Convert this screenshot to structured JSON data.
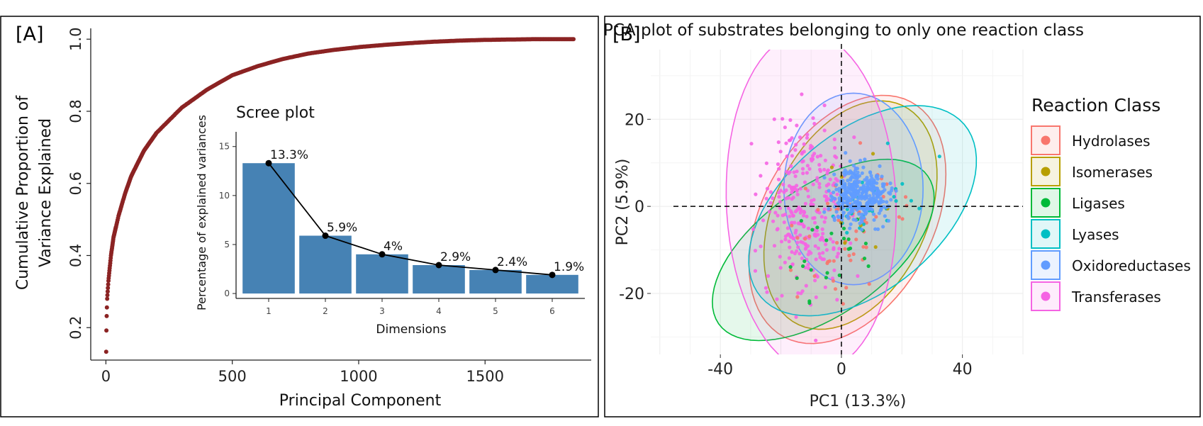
{
  "panel_a": {
    "tag": "[A]",
    "chart_data": {
      "type": "scatter",
      "xlabel": "Principal Component",
      "ylabel_lines": [
        "Cumulative Proportion of",
        "Variance Explained"
      ],
      "xlim": [
        -60,
        1920
      ],
      "ylim": [
        0.11,
        1.03
      ],
      "xticks": [
        0,
        500,
        1000,
        1500
      ],
      "yticks": [
        0.2,
        0.4,
        0.6,
        0.8,
        1.0
      ],
      "ytick_labels": [
        "0.2",
        "0.4",
        "0.6",
        "0.8",
        "1.0"
      ],
      "n_components": 1850,
      "curve_points": [
        [
          1,
          0.133
        ],
        [
          2,
          0.192
        ],
        [
          3,
          0.232
        ],
        [
          5,
          0.28
        ],
        [
          10,
          0.33
        ],
        [
          20,
          0.4
        ],
        [
          30,
          0.45
        ],
        [
          50,
          0.51
        ],
        [
          75,
          0.57
        ],
        [
          100,
          0.62
        ],
        [
          150,
          0.69
        ],
        [
          200,
          0.74
        ],
        [
          300,
          0.81
        ],
        [
          400,
          0.86
        ],
        [
          500,
          0.9
        ],
        [
          600,
          0.925
        ],
        [
          700,
          0.945
        ],
        [
          800,
          0.96
        ],
        [
          900,
          0.97
        ],
        [
          1000,
          0.978
        ],
        [
          1100,
          0.984
        ],
        [
          1200,
          0.989
        ],
        [
          1300,
          0.993
        ],
        [
          1400,
          0.996
        ],
        [
          1500,
          0.998
        ],
        [
          1600,
          0.999
        ],
        [
          1700,
          1.0
        ],
        [
          1850,
          1.0
        ]
      ],
      "color": "#8B2323"
    },
    "inset": {
      "chart_data": {
        "type": "bar",
        "title": "Scree plot",
        "xlabel": "Dimensions",
        "ylabel": "Percentage of explained variances",
        "categories": [
          "1",
          "2",
          "3",
          "4",
          "5",
          "6"
        ],
        "values": [
          13.3,
          5.9,
          4.0,
          2.9,
          2.4,
          1.9
        ],
        "value_labels": [
          "13.3%",
          "5.9%",
          "4%",
          "2.9%",
          "2.4%",
          "1.9%"
        ],
        "ylim": [
          -0.5,
          16.5
        ],
        "yticks": [
          0,
          5,
          10,
          15
        ],
        "ytick_labels": [
          "0",
          "5",
          "10",
          "15"
        ],
        "bar_color": "#4682B4"
      }
    }
  },
  "panel_b": {
    "tag": "[B]",
    "chart_data": {
      "type": "scatter",
      "title": "PCA plot of substrates belonging to only one reaction class",
      "xlabel": "PC1 (13.3%)",
      "ylabel": "PC2 (5.9%)",
      "xlim": [
        -63,
        60
      ],
      "ylim": [
        -34,
        36
      ],
      "xticks": [
        -40,
        0,
        40
      ],
      "xtick_labels": [
        "-40",
        "0",
        "40"
      ],
      "yticks": [
        -20,
        0,
        20
      ],
      "ytick_labels": [
        "-20",
        "0",
        "20"
      ],
      "legend_title": "Reaction Class",
      "legend_position": "right",
      "series": [
        {
          "name": "Hydrolases",
          "color": "#F8766D",
          "ellipse": {
            "cx": 2,
            "cy": -3,
            "rx": 36,
            "ry": 24,
            "angle": 35
          }
        },
        {
          "name": "Isomerases",
          "color": "#B79F00",
          "ellipse": {
            "cx": 3,
            "cy": -2,
            "rx": 32,
            "ry": 22,
            "angle": 38
          }
        },
        {
          "name": "Ligases",
          "color": "#00BA38",
          "ellipse": {
            "cx": -6,
            "cy": -10,
            "rx": 39,
            "ry": 16,
            "angle": 22
          }
        },
        {
          "name": "Lyases",
          "color": "#00BFC4",
          "ellipse": {
            "cx": 7,
            "cy": -1,
            "rx": 40,
            "ry": 20,
            "angle": 23
          }
        },
        {
          "name": "Oxidoreductases",
          "color": "#619CFF",
          "ellipse": {
            "cx": 4,
            "cy": 4,
            "rx": 23,
            "ry": 22,
            "angle": 0
          }
        },
        {
          "name": "Transferases",
          "color": "#F564E3",
          "ellipse": {
            "cx": -10,
            "cy": 1,
            "rx": 39,
            "ry": 28,
            "angle": 95
          }
        }
      ]
    }
  }
}
